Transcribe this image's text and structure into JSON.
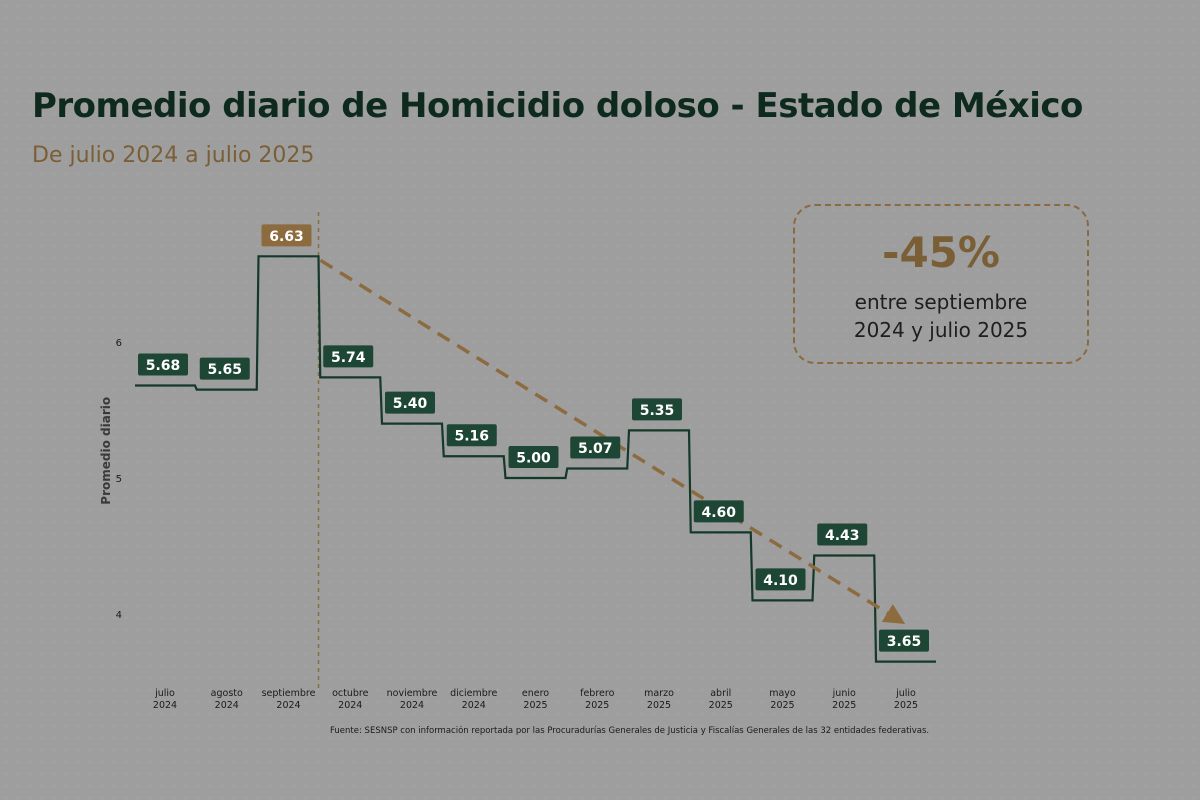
{
  "title": "Promedio diario de Homicidio doloso - Estado de México",
  "subtitle": "De julio 2024 a julio 2025",
  "callout": {
    "value": "-45%",
    "line1": "entre septiembre",
    "line2": "2024 y julio 2025"
  },
  "footnote": "Fuente: SESNSP con información reportada por las Procuradurías Generales de Justicia y Fiscalías Generales de las 32 entidades federativas.",
  "colors": {
    "step_line": "#14392a",
    "label_bg": "#1d4634",
    "highlight": "#8c6b3f",
    "background": "#9e9e9e"
  },
  "chart_data": {
    "type": "line",
    "ylabel": "Promedio diario",
    "ylim": [
      3.5,
      6.9
    ],
    "yticks": [
      4,
      5,
      6
    ],
    "categories": [
      [
        "julio",
        "2024"
      ],
      [
        "agosto",
        "2024"
      ],
      [
        "septiembre",
        "2024"
      ],
      [
        "octubre",
        "2024"
      ],
      [
        "noviembre",
        "2024"
      ],
      [
        "diciembre",
        "2024"
      ],
      [
        "enero",
        "2025"
      ],
      [
        "febrero",
        "2025"
      ],
      [
        "marzo",
        "2025"
      ],
      [
        "abril",
        "2025"
      ],
      [
        "mayo",
        "2025"
      ],
      [
        "junio",
        "2025"
      ],
      [
        "julio",
        "2025"
      ]
    ],
    "values": [
      5.68,
      5.65,
      6.63,
      5.74,
      5.4,
      5.16,
      5.0,
      5.07,
      5.35,
      4.6,
      4.1,
      4.43,
      3.65
    ],
    "value_labels": [
      "5.68",
      "5.65",
      "6.63",
      "5.74",
      "5.40",
      "5.16",
      "5.00",
      "5.07",
      "5.35",
      "4.60",
      "4.10",
      "4.43",
      "3.65"
    ],
    "highlight_index": 2,
    "trend": {
      "from_index": 2,
      "to_index": 12
    },
    "grid": false,
    "legend": "none"
  }
}
